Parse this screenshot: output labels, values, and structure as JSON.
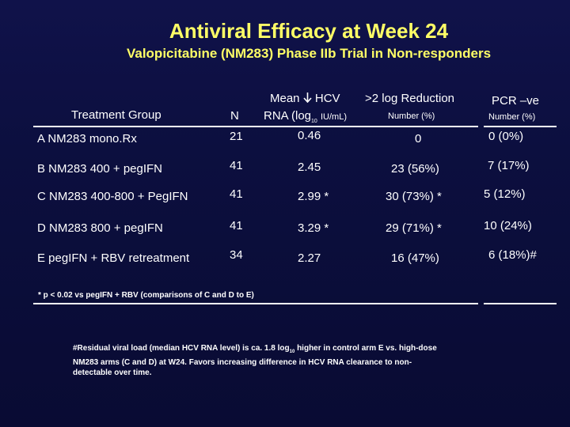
{
  "title": "Antiviral Efficacy at Week 24",
  "subtitle": "Valopicitabine (NM283) Phase IIb Trial in Non-responders",
  "table": {
    "headers": {
      "group": "Treatment Group",
      "n": "N",
      "mean_line1_prefix": "Mean",
      "mean_line1_suffix": "HCV",
      "mean_line2_prefix": "RNA (log",
      "mean_line2_sub": "10",
      "mean_line2_suffix": "IU/mL)",
      "reduction": ">2 log Reduction",
      "reduction_sub": "Number (%)",
      "pcr": "PCR –ve",
      "pcr_sub": "Number (%)"
    },
    "rows": [
      {
        "group": "A   NM283 mono.Rx",
        "n": "21",
        "mean": "0.46",
        "reduction": "0",
        "pcr": "0 (0%)"
      },
      {
        "group": "B   NM283 400 + pegIFN",
        "n": "41",
        "mean": "2.45",
        "reduction": "23  (56%)",
        "pcr": "7 (17%)"
      },
      {
        "group": "C   NM283 400-800 + PegIFN",
        "n": "41",
        "mean": "2.99 *",
        "reduction": "30  (73%) *",
        "pcr": "5 (12%)"
      },
      {
        "group": "D   NM283 800 + pegIFN",
        "n": "41",
        "mean": "3.29 *",
        "reduction": "29  (71%) *",
        "pcr": "10 (24%)"
      },
      {
        "group": "E  pegIFN + RBV retreatment",
        "n": "34",
        "mean": "2.27",
        "reduction": "16  (47%)",
        "pcr": "6 (18%)#"
      }
    ]
  },
  "footnote": "* p < 0.02 vs pegIFN + RBV (comparisons of C and D to E)",
  "note": {
    "part1": "#Residual viral load (median HCV RNA level) is ca. 1.8 log",
    "sub": "10",
    "part2": " higher in control arm E vs. high-dose NM283 arms (C and D) at W24.  Favors increasing difference in HCV RNA clearance to non-detectable over time."
  },
  "colors": {
    "title": "#ffff66",
    "background": "#0c0f3f",
    "text": "#ffffff"
  },
  "icons": {
    "down_arrow": "down-arrow-icon"
  }
}
